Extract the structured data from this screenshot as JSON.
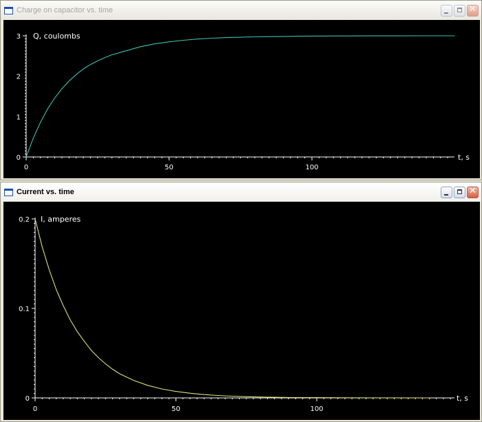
{
  "windows": [
    {
      "title": "Charge on capacitor vs. time",
      "active": false,
      "controls": {
        "minimize": "minimize",
        "maximize": "maximize",
        "close": "close"
      }
    },
    {
      "title": "Current vs. time",
      "active": true,
      "controls": {
        "minimize": "minimize",
        "maximize": "maximize",
        "close": "close"
      }
    }
  ],
  "chart_data": [
    {
      "type": "line",
      "title": "Charge on capacitor vs. time",
      "ylabel": "Q, coulombs",
      "xlabel": "t, s",
      "xlim": [
        0,
        150
      ],
      "ylim": [
        0,
        3
      ],
      "x_ticks": [
        0,
        50,
        100
      ],
      "y_ticks": [
        0,
        1,
        2,
        3
      ],
      "grid": false,
      "line_color": "#3fbfb0",
      "series": [
        {
          "x": [
            0,
            2.5,
            5,
            7.5,
            10,
            12.5,
            15,
            17.5,
            20,
            22.5,
            25,
            27.5,
            30,
            35,
            40,
            45,
            50,
            55,
            60,
            65,
            70,
            75,
            80,
            85,
            90,
            95,
            100,
            110,
            120,
            130,
            140,
            150
          ],
          "values": [
            0,
            0.47,
            0.86,
            1.19,
            1.46,
            1.69,
            1.88,
            2.04,
            2.18,
            2.29,
            2.38,
            2.46,
            2.53,
            2.63,
            2.73,
            2.8,
            2.85,
            2.89,
            2.92,
            2.94,
            2.955,
            2.965,
            2.975,
            2.98,
            2.985,
            2.99,
            2.993,
            2.996,
            2.998,
            2.999,
            3.0,
            3.0
          ]
        }
      ]
    },
    {
      "type": "line",
      "title": "Current vs. time",
      "ylabel": "I, amperes",
      "xlabel": "t, s",
      "xlim": [
        0,
        150
      ],
      "ylim": [
        0,
        0.2
      ],
      "x_ticks": [
        0,
        50,
        100
      ],
      "y_ticks": [
        0,
        0.1,
        0.2
      ],
      "y_tick_labels": [
        "0",
        "0.1",
        "0.2"
      ],
      "grid": false,
      "line_color": "#e0e07a",
      "series": [
        {
          "x": [
            0,
            2.5,
            5,
            7.5,
            10,
            12.5,
            15,
            17.5,
            20,
            22.5,
            25,
            27.5,
            30,
            35,
            40,
            45,
            50,
            55,
            60,
            65,
            70,
            75,
            80,
            85,
            90,
            95,
            100,
            110,
            120,
            130,
            140,
            150
          ],
          "values": [
            0.2,
            0.169,
            0.143,
            0.121,
            0.103,
            0.087,
            0.074,
            0.063,
            0.053,
            0.045,
            0.038,
            0.032,
            0.027,
            0.0195,
            0.014,
            0.01,
            0.0072,
            0.0052,
            0.0037,
            0.0027,
            0.0019,
            0.0014,
            0.001,
            0.0007,
            0.0005,
            0.0004,
            0.0003,
            0.00015,
            8e-05,
            4e-05,
            2e-05,
            1e-05
          ]
        }
      ]
    }
  ]
}
